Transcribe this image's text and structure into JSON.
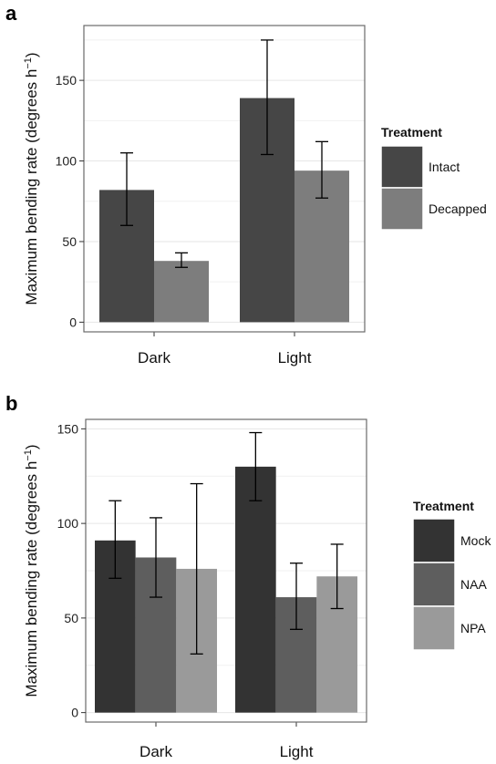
{
  "chart_data": [
    {
      "panel": "a",
      "type": "bar",
      "categories": [
        "Dark",
        "Light"
      ],
      "series": [
        {
          "name": "Intact",
          "values": [
            82,
            139
          ],
          "errors": [
            [
              60,
              105
            ],
            [
              104,
              175
            ]
          ],
          "color": "#464646"
        },
        {
          "name": "Decapped",
          "values": [
            38,
            94
          ],
          "errors": [
            [
              34,
              43
            ],
            [
              77,
              112
            ]
          ],
          "color": "#7d7d7d"
        }
      ],
      "ylabel": "Maximum bending rate (degrees h",
      "ylabel_sup": "−1",
      "ylabel_end": ")",
      "yticks": [
        0,
        50,
        100,
        150
      ],
      "ylim": [
        -6,
        184
      ],
      "legend_title": "Treatment",
      "legend_position": "right",
      "grid": true
    },
    {
      "panel": "b",
      "type": "bar",
      "categories": [
        "Dark",
        "Light"
      ],
      "series": [
        {
          "name": "Mock",
          "values": [
            91,
            130
          ],
          "errors": [
            [
              71,
              112
            ],
            [
              112,
              148
            ]
          ],
          "color": "#333333"
        },
        {
          "name": "NAA",
          "values": [
            82,
            61
          ],
          "errors": [
            [
              61,
              103
            ],
            [
              44,
              79
            ]
          ],
          "color": "#5e5e5e"
        },
        {
          "name": "NPA",
          "values": [
            76,
            72
          ],
          "errors": [
            [
              31,
              121
            ],
            [
              55,
              89
            ]
          ],
          "color": "#9a9a9a"
        }
      ],
      "ylabel": "Maximum bending rate (degrees h",
      "ylabel_sup": "−1",
      "ylabel_end": ")",
      "yticks": [
        0,
        50,
        100,
        150
      ],
      "ylim": [
        -5,
        155
      ],
      "legend_title": "Treatment",
      "legend_position": "right",
      "grid": true
    }
  ]
}
